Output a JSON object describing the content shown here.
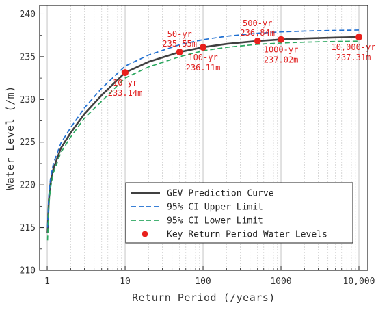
{
  "chart_data": {
    "type": "line",
    "xlabel": "Return Period (/years)",
    "ylabel": "Water Level (/m)",
    "xscale": "log",
    "xlim": [
      0.8,
      13000
    ],
    "ylim": [
      210,
      241
    ],
    "x_ticks": [
      1,
      10,
      100,
      1000,
      10000
    ],
    "x_tick_labels": [
      "1",
      "10",
      "100",
      "1000",
      "10,000"
    ],
    "y_ticks": [
      210,
      215,
      220,
      225,
      230,
      235,
      240
    ],
    "y_tick_labels": [
      "210",
      "215",
      "220",
      "225",
      "230",
      "235",
      "240"
    ],
    "grid": "vertical, major solid and minor dotted",
    "legend_position": "lower-right",
    "series": [
      {
        "name": "GEV Prediction Curve",
        "style": "solid",
        "color": "#404040",
        "x": [
          1.01,
          1.05,
          1.1,
          1.2,
          1.5,
          2,
          3,
          5,
          10,
          20,
          50,
          100,
          200,
          500,
          1000,
          2000,
          5000,
          10000
        ],
        "values": [
          214.4,
          218.2,
          220.1,
          221.9,
          224.3,
          226.1,
          228.3,
          230.5,
          233.14,
          234.4,
          235.55,
          236.11,
          236.5,
          236.84,
          237.02,
          237.14,
          237.25,
          237.31
        ]
      },
      {
        "name": "95% CI Upper Limit",
        "style": "dashed",
        "color": "#1f6fd1",
        "x": [
          1.01,
          1.05,
          1.1,
          1.2,
          1.5,
          2,
          3,
          5,
          10,
          20,
          50,
          100,
          200,
          500,
          1000,
          2000,
          5000,
          10000
        ],
        "values": [
          215.0,
          218.8,
          220.7,
          222.5,
          224.9,
          226.7,
          229.0,
          231.3,
          233.9,
          235.2,
          236.4,
          237.0,
          237.4,
          237.75,
          237.9,
          238.0,
          238.08,
          238.12
        ]
      },
      {
        "name": "95% CI Lower Limit",
        "style": "dashed",
        "color": "#2ca860",
        "x": [
          1.01,
          1.05,
          1.1,
          1.2,
          1.5,
          2,
          3,
          5,
          10,
          20,
          50,
          100,
          200,
          500,
          1000,
          2000,
          5000,
          10000
        ],
        "values": [
          213.5,
          217.6,
          219.6,
          221.4,
          223.8,
          225.6,
          227.8,
          229.8,
          232.5,
          233.8,
          235.0,
          235.7,
          236.1,
          236.45,
          236.6,
          236.7,
          236.78,
          236.82
        ]
      }
    ],
    "key_points": {
      "name": "Key Return Period Water Levels",
      "color": "#e8201c",
      "points": [
        {
          "x": 10,
          "y": 233.14,
          "label_period": "10-yr",
          "label_value": "233.14m",
          "anchor": "below"
        },
        {
          "x": 50,
          "y": 235.55,
          "label_period": "50-yr",
          "label_value": "235.55m",
          "anchor": "above"
        },
        {
          "x": 100,
          "y": 236.11,
          "label_period": "100-yr",
          "label_value": "236.11m",
          "anchor": "below"
        },
        {
          "x": 500,
          "y": 236.84,
          "label_period": "500-yr",
          "label_value": "236.84m",
          "anchor": "above"
        },
        {
          "x": 1000,
          "y": 237.02,
          "label_period": "1000-yr",
          "label_value": "237.02m",
          "anchor": "below"
        },
        {
          "x": 10000,
          "y": 237.31,
          "label_period": "10,000-yr",
          "label_value": "237.31m",
          "anchor": "below"
        }
      ]
    },
    "legend": {
      "entries": [
        {
          "label": "GEV Prediction Curve",
          "kind": "solid",
          "color": "#404040"
        },
        {
          "label": "95% CI Upper Limit",
          "kind": "dashed",
          "color": "#1f6fd1"
        },
        {
          "label": "95% CI Lower Limit",
          "kind": "dashed",
          "color": "#2ca860"
        },
        {
          "label": "Key Return Period Water Levels",
          "kind": "marker",
          "color": "#e8201c"
        }
      ]
    }
  }
}
